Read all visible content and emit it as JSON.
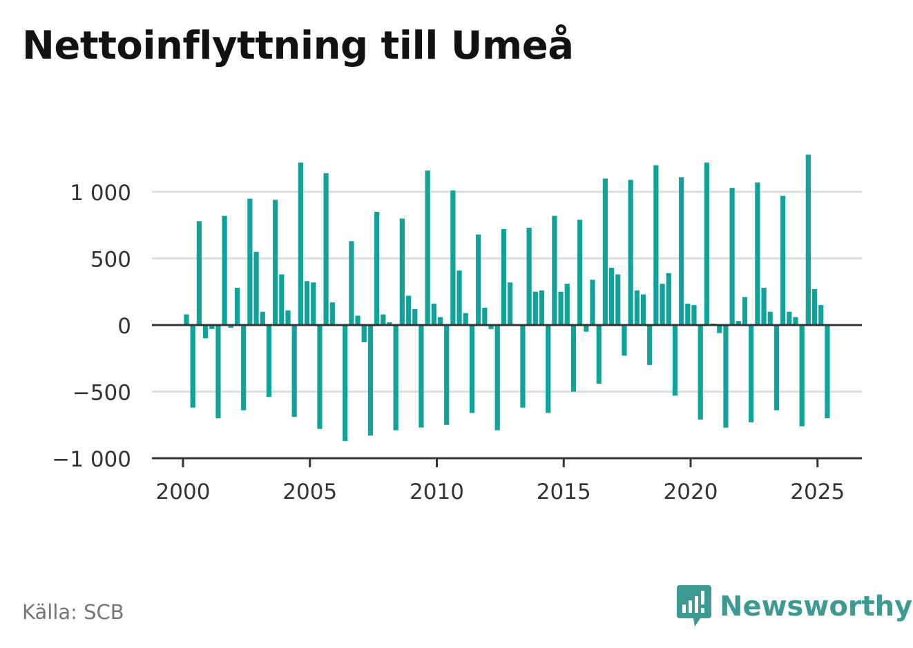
{
  "title": "Nettoinflyttning till Umeå",
  "source": "Källa: SCB",
  "brand": "Newsworthy",
  "colors": {
    "bar": "#10a399",
    "brand": "#3d9a93",
    "grid": "#dddddd",
    "axis": "#333333"
  },
  "chart_data": {
    "type": "bar",
    "title": "Nettoinflyttning till Umeå",
    "frequency": "quarterly",
    "x_start": 2000,
    "x_ticks": [
      2000,
      2005,
      2010,
      2015,
      2020,
      2025
    ],
    "y_ticks": [
      -1000,
      -500,
      0,
      500,
      1000
    ],
    "y_tick_labels": [
      "−1 000",
      "−500",
      "0",
      "500",
      "1 000"
    ],
    "ylim": [
      -1000,
      1300
    ],
    "grid": true,
    "values": [
      80,
      -620,
      780,
      -100,
      -30,
      -700,
      820,
      -20,
      280,
      -640,
      950,
      550,
      100,
      -540,
      940,
      380,
      110,
      -690,
      1220,
      330,
      320,
      -780,
      1140,
      170,
      0,
      -870,
      630,
      70,
      -130,
      -830,
      850,
      80,
      20,
      -790,
      800,
      220,
      120,
      -770,
      1160,
      160,
      60,
      -750,
      1010,
      410,
      90,
      -660,
      680,
      130,
      -30,
      -790,
      720,
      320,
      0,
      -620,
      730,
      250,
      260,
      -660,
      820,
      250,
      310,
      -500,
      790,
      -50,
      340,
      -440,
      1100,
      430,
      380,
      -230,
      1090,
      260,
      230,
      -300,
      1200,
      310,
      390,
      -530,
      1110,
      160,
      150,
      -710,
      1220,
      10,
      -60,
      -770,
      1030,
      30,
      210,
      -730,
      1070,
      280,
      100,
      -640,
      970,
      100,
      60,
      -760,
      1280,
      270,
      150,
      -700
    ]
  }
}
